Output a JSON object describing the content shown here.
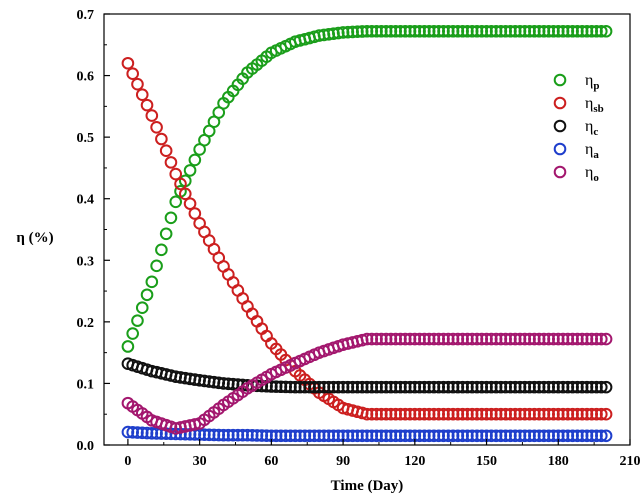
{
  "chart_data": {
    "type": "scatter",
    "title": "",
    "xlabel": "Time (Day)",
    "ylabel": "η (%)",
    "xlim": [
      -10,
      210
    ],
    "ylim": [
      0,
      0.7
    ],
    "xticks": [
      0,
      30,
      60,
      90,
      120,
      150,
      180,
      210
    ],
    "yticks": [
      0.0,
      0.1,
      0.2,
      0.3,
      0.4,
      0.5,
      0.6,
      0.7
    ],
    "xtick_labels": [
      "0",
      "30",
      "60",
      "90",
      "120",
      "150",
      "180",
      "210"
    ],
    "ytick_labels": [
      "0.0",
      "0.1",
      "0.2",
      "0.3",
      "0.4",
      "0.5",
      "0.6",
      "0.7"
    ],
    "grid": false,
    "legend_position": "right",
    "marker": "open-circle",
    "x": [
      0,
      10,
      20,
      30,
      40,
      50,
      60,
      70,
      80,
      90,
      100,
      110,
      120,
      130,
      140,
      150,
      160,
      170,
      180,
      190,
      200
    ],
    "series": [
      {
        "name": "η",
        "subscript": "p",
        "color": "#1a9e1a",
        "values": [
          0.16,
          0.265,
          0.395,
          0.48,
          0.555,
          0.605,
          0.637,
          0.655,
          0.665,
          0.67,
          0.672,
          0.672,
          0.672,
          0.672,
          0.672,
          0.672,
          0.672,
          0.672,
          0.672,
          0.672,
          0.672
        ]
      },
      {
        "name": "η",
        "subscript": "sb",
        "color": "#cc1f1f",
        "values": [
          0.62,
          0.535,
          0.44,
          0.36,
          0.29,
          0.225,
          0.165,
          0.12,
          0.085,
          0.06,
          0.05,
          0.05,
          0.05,
          0.05,
          0.05,
          0.05,
          0.05,
          0.05,
          0.05,
          0.05,
          0.05
        ]
      },
      {
        "name": "η",
        "subscript": "c",
        "color": "#111111",
        "values": [
          0.132,
          0.12,
          0.111,
          0.105,
          0.1,
          0.097,
          0.095,
          0.094,
          0.094,
          0.094,
          0.094,
          0.094,
          0.094,
          0.094,
          0.094,
          0.094,
          0.094,
          0.094,
          0.094,
          0.094,
          0.094
        ]
      },
      {
        "name": "η",
        "subscript": "a",
        "color": "#1f3fcc",
        "values": [
          0.021,
          0.019,
          0.018,
          0.017,
          0.016,
          0.016,
          0.015,
          0.015,
          0.015,
          0.015,
          0.015,
          0.015,
          0.015,
          0.015,
          0.015,
          0.015,
          0.015,
          0.015,
          0.015,
          0.015,
          0.015
        ]
      },
      {
        "name": "η",
        "subscript": "o",
        "color": "#a3176e",
        "values": [
          0.068,
          0.04,
          0.027,
          0.035,
          0.065,
          0.092,
          0.115,
          0.133,
          0.15,
          0.163,
          0.172,
          0.172,
          0.172,
          0.172,
          0.172,
          0.172,
          0.172,
          0.172,
          0.172,
          0.172,
          0.172
        ]
      }
    ]
  }
}
